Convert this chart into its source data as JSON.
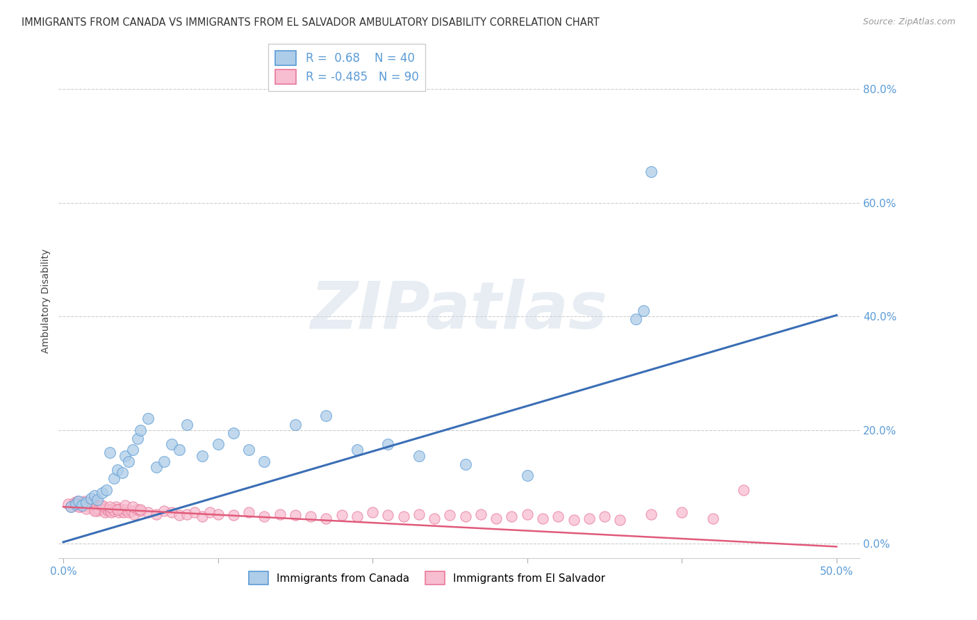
{
  "title": "IMMIGRANTS FROM CANADA VS IMMIGRANTS FROM EL SALVADOR AMBULATORY DISABILITY CORRELATION CHART",
  "source": "Source: ZipAtlas.com",
  "ylabel": "Ambulatory Disability",
  "legend_canada": "Immigrants from Canada",
  "legend_salvador": "Immigrants from El Salvador",
  "R_canada": 0.68,
  "N_canada": 40,
  "R_salvador": -0.485,
  "N_salvador": 90,
  "canada_fill_color": "#aecde8",
  "salvador_fill_color": "#f7bdd0",
  "canada_edge_color": "#5b9bd5",
  "salvador_edge_color": "#e8799a",
  "canada_line_color": "#3a6eb5",
  "salvador_line_color": "#e05a7a",
  "xlim": [
    -0.003,
    0.515
  ],
  "ylim": [
    -0.025,
    0.88
  ],
  "xticks_labeled": [
    0.0,
    0.5
  ],
  "xticks_minor": [
    0.1,
    0.2,
    0.3,
    0.4
  ],
  "yticks_right": [
    0.0,
    0.2,
    0.4,
    0.6,
    0.8
  ],
  "background_color": "#ffffff",
  "tick_color": "#5b9bd5",
  "canada_x": [
    0.005,
    0.008,
    0.01,
    0.012,
    0.015,
    0.018,
    0.02,
    0.022,
    0.025,
    0.028,
    0.03,
    0.033,
    0.035,
    0.038,
    0.04,
    0.042,
    0.045,
    0.048,
    0.05,
    0.055,
    0.06,
    0.065,
    0.07,
    0.075,
    0.08,
    0.09,
    0.1,
    0.11,
    0.12,
    0.13,
    0.15,
    0.17,
    0.19,
    0.21,
    0.23,
    0.26,
    0.3,
    0.37,
    0.375,
    0.38
  ],
  "canada_y": [
    0.065,
    0.07,
    0.075,
    0.068,
    0.072,
    0.08,
    0.085,
    0.078,
    0.09,
    0.095,
    0.16,
    0.115,
    0.13,
    0.125,
    0.155,
    0.145,
    0.165,
    0.185,
    0.2,
    0.22,
    0.135,
    0.145,
    0.175,
    0.165,
    0.21,
    0.155,
    0.175,
    0.195,
    0.165,
    0.145,
    0.21,
    0.225,
    0.165,
    0.175,
    0.155,
    0.14,
    0.12,
    0.395,
    0.41,
    0.655
  ],
  "salvador_x": [
    0.003,
    0.005,
    0.007,
    0.008,
    0.009,
    0.01,
    0.011,
    0.012,
    0.013,
    0.014,
    0.015,
    0.016,
    0.017,
    0.018,
    0.019,
    0.02,
    0.021,
    0.022,
    0.023,
    0.024,
    0.025,
    0.026,
    0.027,
    0.028,
    0.029,
    0.03,
    0.031,
    0.032,
    0.033,
    0.034,
    0.035,
    0.036,
    0.037,
    0.038,
    0.039,
    0.04,
    0.042,
    0.044,
    0.046,
    0.048,
    0.05,
    0.055,
    0.06,
    0.065,
    0.07,
    0.075,
    0.08,
    0.085,
    0.09,
    0.095,
    0.1,
    0.11,
    0.12,
    0.13,
    0.14,
    0.15,
    0.16,
    0.17,
    0.18,
    0.19,
    0.2,
    0.21,
    0.22,
    0.23,
    0.24,
    0.25,
    0.26,
    0.27,
    0.28,
    0.29,
    0.3,
    0.31,
    0.32,
    0.33,
    0.34,
    0.35,
    0.36,
    0.38,
    0.4,
    0.42,
    0.44,
    0.01,
    0.015,
    0.02,
    0.025,
    0.03,
    0.035,
    0.04,
    0.045,
    0.05
  ],
  "salvador_y": [
    0.07,
    0.065,
    0.072,
    0.068,
    0.075,
    0.07,
    0.065,
    0.072,
    0.068,
    0.075,
    0.07,
    0.065,
    0.072,
    0.068,
    0.075,
    0.06,
    0.065,
    0.058,
    0.062,
    0.068,
    0.065,
    0.06,
    0.055,
    0.062,
    0.058,
    0.06,
    0.055,
    0.062,
    0.058,
    0.065,
    0.06,
    0.055,
    0.062,
    0.058,
    0.055,
    0.06,
    0.055,
    0.058,
    0.052,
    0.06,
    0.058,
    0.055,
    0.052,
    0.058,
    0.055,
    0.05,
    0.052,
    0.055,
    0.048,
    0.055,
    0.052,
    0.05,
    0.055,
    0.048,
    0.052,
    0.05,
    0.048,
    0.045,
    0.05,
    0.048,
    0.055,
    0.05,
    0.048,
    0.052,
    0.045,
    0.05,
    0.048,
    0.052,
    0.045,
    0.048,
    0.052,
    0.045,
    0.048,
    0.042,
    0.045,
    0.048,
    0.042,
    0.052,
    0.055,
    0.045,
    0.095,
    0.065,
    0.062,
    0.058,
    0.068,
    0.065,
    0.06,
    0.068,
    0.065,
    0.06
  ],
  "canada_trend": [
    0.003,
    0.402
  ],
  "salvador_trend": [
    0.065,
    -0.005
  ],
  "watermark": "ZIPatlas"
}
